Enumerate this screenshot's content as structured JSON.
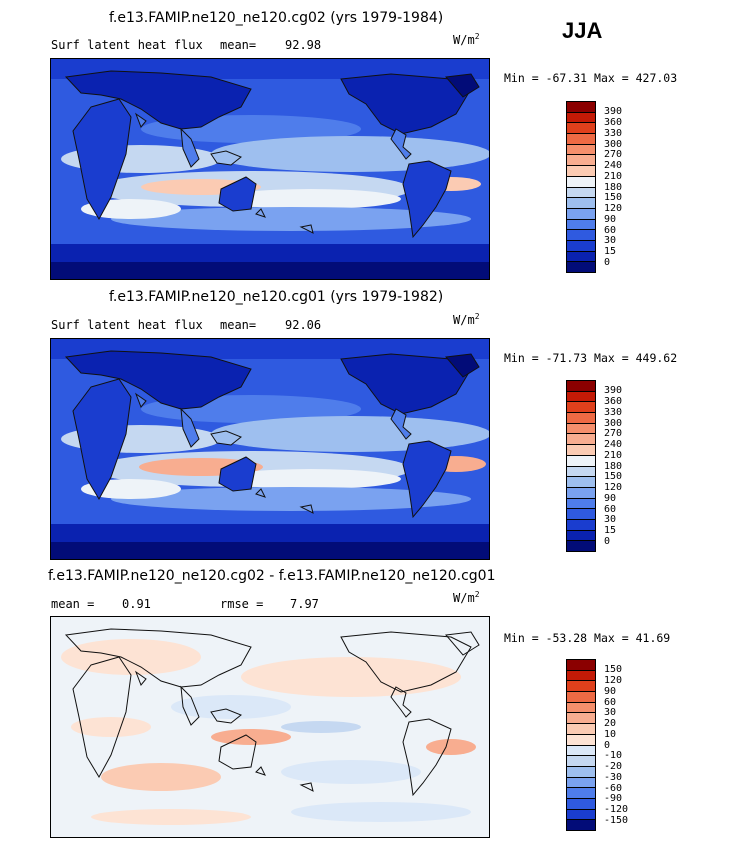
{
  "season": "JJA",
  "panel1": {
    "title": "f.e13.FAMIP.ne120_ne120.cg02 (yrs 1979-1984)",
    "variable": "Surf latent heat flux",
    "mean_label": "mean=",
    "mean_value": "92.98",
    "units": "W/m",
    "units_exp": "2",
    "min_label": "Min =",
    "min_value": "-67.31",
    "max_label": "Max =",
    "max_value": "427.03"
  },
  "panel2": {
    "title": "f.e13.FAMIP.ne120_ne120.cg01 (yrs 1979-1982)",
    "variable": "Surf latent heat flux",
    "mean_label": "mean=",
    "mean_value": "92.06",
    "units": "W/m",
    "units_exp": "2",
    "min_label": "Min =",
    "min_value": "-71.73",
    "max_label": "Max =",
    "max_value": "449.62"
  },
  "panel3": {
    "title": "f.e13.FAMIP.ne120_ne120.cg02 - f.e13.FAMIP.ne120_ne120.cg01",
    "mean_label": "mean =",
    "mean_value": "0.91",
    "rmse_label": "rmse =",
    "rmse_value": "7.97",
    "units": "W/m",
    "units_exp": "2",
    "min_label": "Min =",
    "min_value": "-53.28",
    "max_label": "Max =",
    "max_value": "41.69"
  },
  "colorbar_abs": {
    "levels": [
      "390",
      "360",
      "330",
      "300",
      "270",
      "240",
      "210",
      "180",
      "150",
      "120",
      "90",
      "60",
      "30",
      "15",
      "0"
    ],
    "colors": [
      "#8b0000",
      "#c41a06",
      "#e0401c",
      "#ee6a44",
      "#f58f6c",
      "#f8ad90",
      "#fbcbb3",
      "#eef3f8",
      "#c5d8f1",
      "#9ebfef",
      "#7aa2f0",
      "#4f7deb",
      "#2f5ae0",
      "#1a3dcf",
      "#0a22b0",
      "#020c78"
    ]
  },
  "colorbar_diff": {
    "levels": [
      "150",
      "120",
      "90",
      "60",
      "30",
      "20",
      "10",
      "0",
      "-10",
      "-20",
      "-30",
      "-60",
      "-90",
      "-120",
      "-150"
    ],
    "colors": [
      "#8b0000",
      "#c41a06",
      "#e0401c",
      "#ee6a44",
      "#f58f6c",
      "#f8ad90",
      "#fbcbb3",
      "#fde3d4",
      "#dbe8f8",
      "#c5d8f1",
      "#9ebfef",
      "#7aa2f0",
      "#4f7deb",
      "#2f5ae0",
      "#1a3dcf",
      "#020c78"
    ]
  }
}
